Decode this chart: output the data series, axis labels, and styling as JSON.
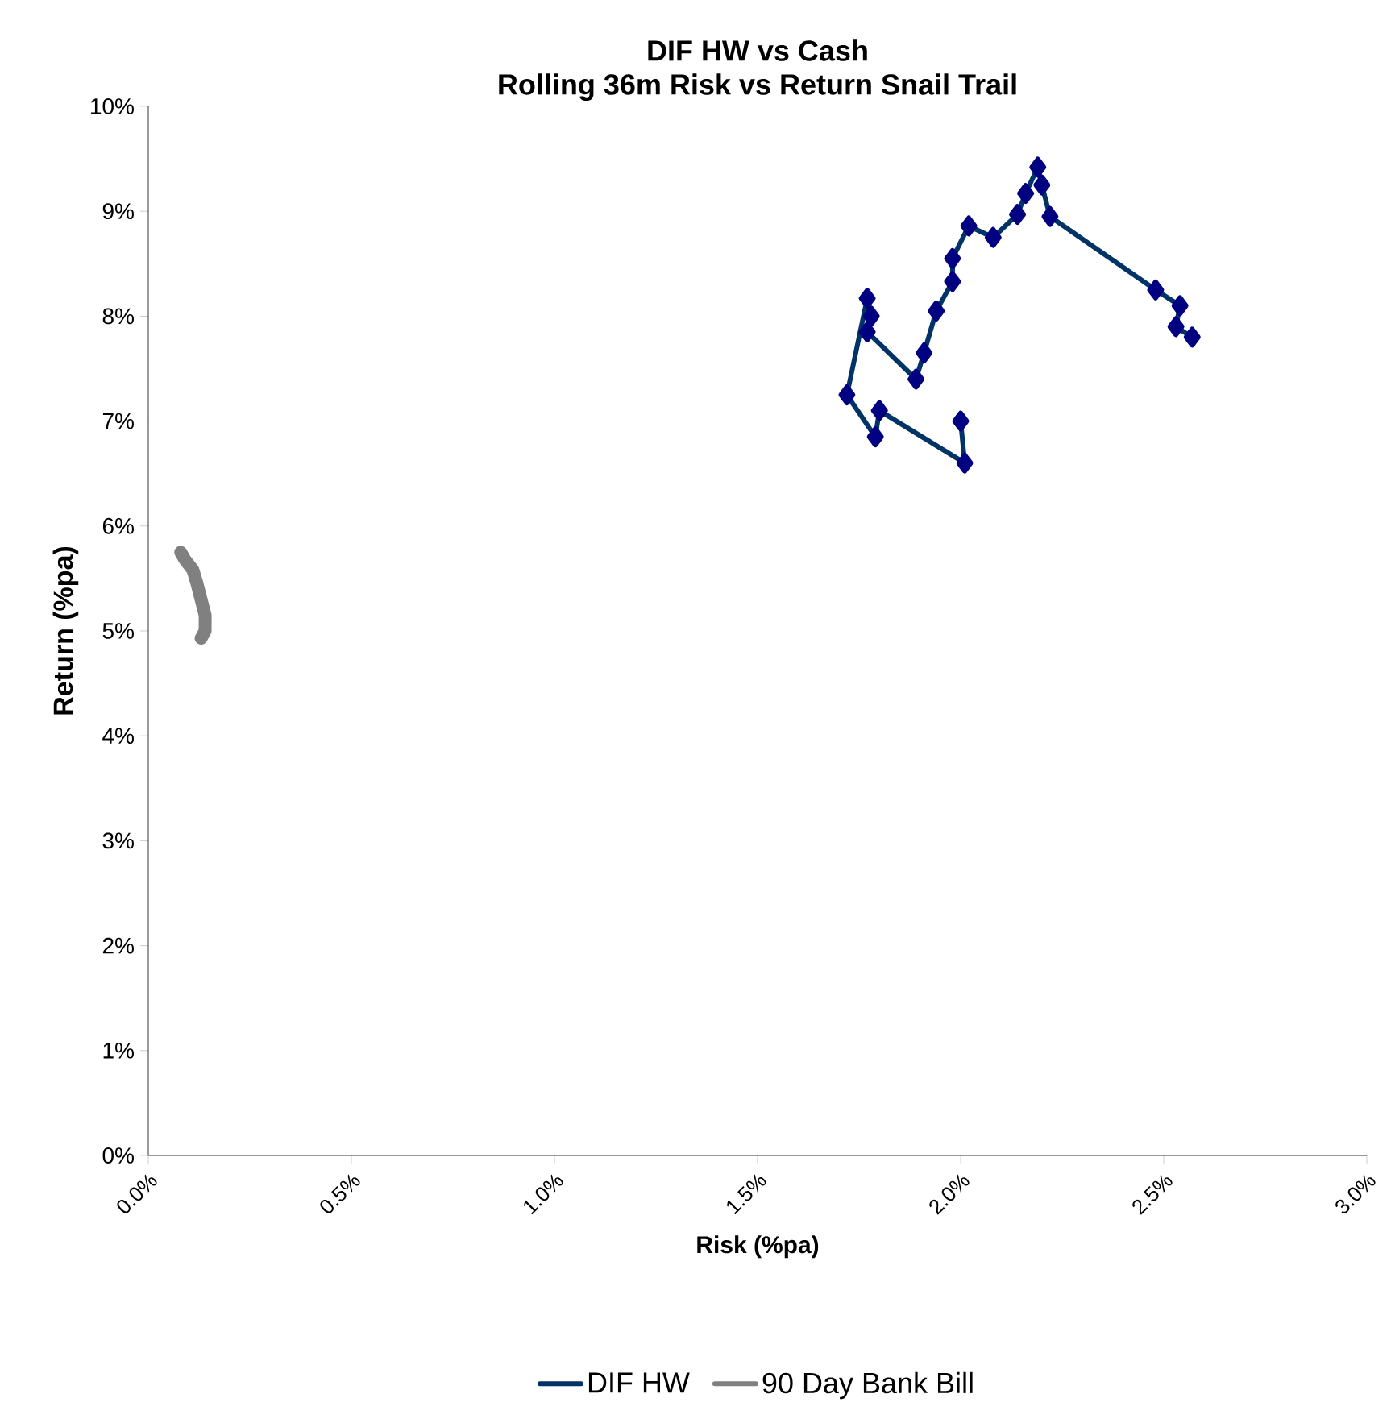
{
  "chart_data": {
    "type": "line",
    "title": "DIF HW vs Cash",
    "subtitle": "Rolling 36m Risk vs Return Snail Trail",
    "xlabel": "Risk (%pa)",
    "ylabel": "Return (%pa)",
    "xlim": [
      0,
      3
    ],
    "ylim": [
      0,
      10
    ],
    "xticks": [
      {
        "value": 0,
        "label": "0.0%"
      },
      {
        "value": 0.5,
        "label": "0.5%"
      },
      {
        "value": 1,
        "label": "1.0%"
      },
      {
        "value": 1.5,
        "label": "1.5%"
      },
      {
        "value": 2,
        "label": "2.0%"
      },
      {
        "value": 2.5,
        "label": "2.5%"
      },
      {
        "value": 3,
        "label": "3.0%"
      }
    ],
    "yticks": [
      {
        "value": 0,
        "label": "0%"
      },
      {
        "value": 1,
        "label": "1%"
      },
      {
        "value": 2,
        "label": "2%"
      },
      {
        "value": 3,
        "label": "3%"
      },
      {
        "value": 4,
        "label": "4%"
      },
      {
        "value": 5,
        "label": "5%"
      },
      {
        "value": 6,
        "label": "6%"
      },
      {
        "value": 7,
        "label": "7%"
      },
      {
        "value": 8,
        "label": "8%"
      },
      {
        "value": 9,
        "label": "9%"
      },
      {
        "value": 10,
        "label": "10%"
      }
    ],
    "grid": false,
    "legend": "bottom",
    "series": [
      {
        "name": "DIF HW",
        "color": "#003366",
        "marker": "diamond",
        "x": [
          2.0,
          2.01,
          1.8,
          1.79,
          1.72,
          1.77,
          1.78,
          1.77,
          1.89,
          1.91,
          1.94,
          1.98,
          1.98,
          2.02,
          2.08,
          2.14,
          2.16,
          2.19,
          2.2,
          2.22,
          2.48,
          2.54,
          2.53,
          2.57
        ],
        "values": [
          7.0,
          6.6,
          7.1,
          6.85,
          7.25,
          8.17,
          8.0,
          7.85,
          7.4,
          7.65,
          8.05,
          8.33,
          8.55,
          8.86,
          8.75,
          8.97,
          9.17,
          9.42,
          9.25,
          8.95,
          8.25,
          8.1,
          7.9,
          7.8
        ]
      },
      {
        "name": "90 Day Bank Bill",
        "color": "#808080",
        "marker": "none",
        "x": [
          0.08,
          0.09,
          0.11,
          0.12,
          0.14,
          0.14,
          0.13
        ],
        "values": [
          5.75,
          5.68,
          5.58,
          5.45,
          5.15,
          5.0,
          4.93
        ]
      }
    ]
  }
}
